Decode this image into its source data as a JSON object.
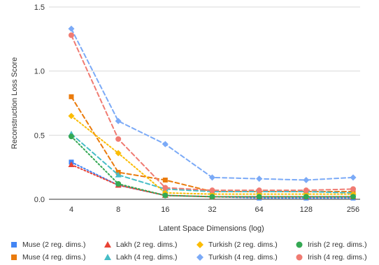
{
  "chart_data": {
    "type": "line",
    "title": "",
    "xlabel": "Latent Space Dimensions (log)",
    "ylabel": "Reconstruction Loss Score",
    "x": [
      "4",
      "8",
      "16",
      "32",
      "64",
      "128",
      "256"
    ],
    "x_scale": "log2 (categorical ticks)",
    "ylim": [
      0,
      1.5
    ],
    "yticks": [
      "0.0",
      "0.5",
      "1.0",
      "1.5"
    ],
    "grid": "horizontal",
    "legend_position": "bottom",
    "series": [
      {
        "name": "Muse (2 reg. dims.)",
        "color": "#4285f4",
        "marker": "square",
        "dash": "dotted",
        "values": [
          0.29,
          0.11,
          0.03,
          0.02,
          0.01,
          0.01,
          0.01
        ]
      },
      {
        "name": "Muse (4 reg. dims.)",
        "color": "#ea7b0c",
        "marker": "square",
        "dash": "dashed",
        "values": [
          0.8,
          0.21,
          0.15,
          0.06,
          0.06,
          0.06,
          0.06
        ]
      },
      {
        "name": "Lakh (2 reg. dims.)",
        "color": "#e84335",
        "marker": "triangle",
        "dash": "dotted",
        "values": [
          0.27,
          0.11,
          0.03,
          0.02,
          0.02,
          0.02,
          0.02
        ]
      },
      {
        "name": "Lakh (4 reg. dims.)",
        "color": "#46bdc6",
        "marker": "triangle",
        "dash": "dashed",
        "values": [
          0.51,
          0.19,
          0.08,
          0.06,
          0.06,
          0.06,
          0.05
        ]
      },
      {
        "name": "Turkish (2 reg. dims.)",
        "color": "#fbbc04",
        "marker": "diamond",
        "dash": "dotted",
        "values": [
          0.65,
          0.36,
          0.05,
          0.04,
          0.04,
          0.04,
          0.04
        ]
      },
      {
        "name": "Turkish (4 reg. dims.)",
        "color": "#7baaf7",
        "marker": "diamond",
        "dash": "dashed",
        "values": [
          1.33,
          0.61,
          0.43,
          0.17,
          0.16,
          0.15,
          0.17
        ]
      },
      {
        "name": "Irish (2 reg. dims.)",
        "color": "#34a853",
        "marker": "circle",
        "dash": "dotted",
        "values": [
          0.49,
          0.12,
          0.03,
          0.02,
          0.02,
          0.02,
          0.02
        ]
      },
      {
        "name": "Irish (4 reg. dims.)",
        "color": "#f07b72",
        "marker": "circle",
        "dash": "dashed",
        "values": [
          1.28,
          0.47,
          0.09,
          0.07,
          0.07,
          0.07,
          0.08
        ]
      }
    ]
  }
}
